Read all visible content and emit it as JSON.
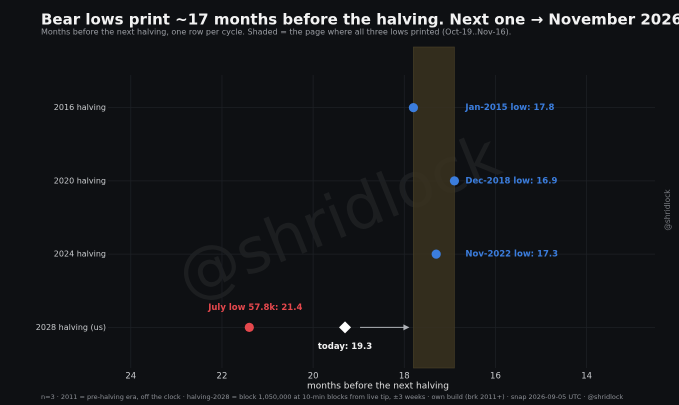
{
  "chart_data": {
    "type": "dot",
    "title": "Bear lows print ~17 months before the halving. Next one → November 2026",
    "subtitle": "Months before the next halving, one row per cycle. Shaded = the page where all three lows printed (Oct-19..Nov-16).",
    "xlabel": "months before the next halving",
    "footer": "n=3 · 2011 = pre-halving era, off the clock · halving-2028 = block 1,050,000 at 10-min blocks from live tip, ±3 weeks · own build (brk 2011+) · snap 2026-09-05 UTC · @shridlock",
    "watermark": "@shridlock",
    "side_text": "@shridlock",
    "categories": [
      "2016 halving",
      "2020 halving",
      "2024 halving",
      "2028 halving (us)"
    ],
    "series": [
      {
        "color": "#3b7ddd",
        "marker": "circle",
        "values": [
          17.8,
          16.9,
          17.3,
          null
        ],
        "value_labels": [
          "Jan-2015 low: 17.8",
          "Dec-2018 low: 16.9",
          "Nov-2022 low: 17.3",
          null
        ]
      },
      {
        "color": "#e5484d",
        "marker": "circle",
        "values": [
          null,
          null,
          null,
          21.4
        ],
        "value_labels": [
          null,
          null,
          null,
          "July low 57.8k: 21.4"
        ]
      },
      {
        "color": "#ffffff",
        "marker": "diamond",
        "values": [
          null,
          null,
          null,
          19.3
        ],
        "value_labels": [
          null,
          null,
          null,
          "today: 19.3"
        ]
      }
    ],
    "span": [
      17.8,
      16.9
    ],
    "span_color": "#3a3220",
    "xlim": [
      24.5,
      12.5
    ],
    "xticks": [
      24,
      22,
      20,
      18,
      16,
      14
    ],
    "grid": true
  }
}
